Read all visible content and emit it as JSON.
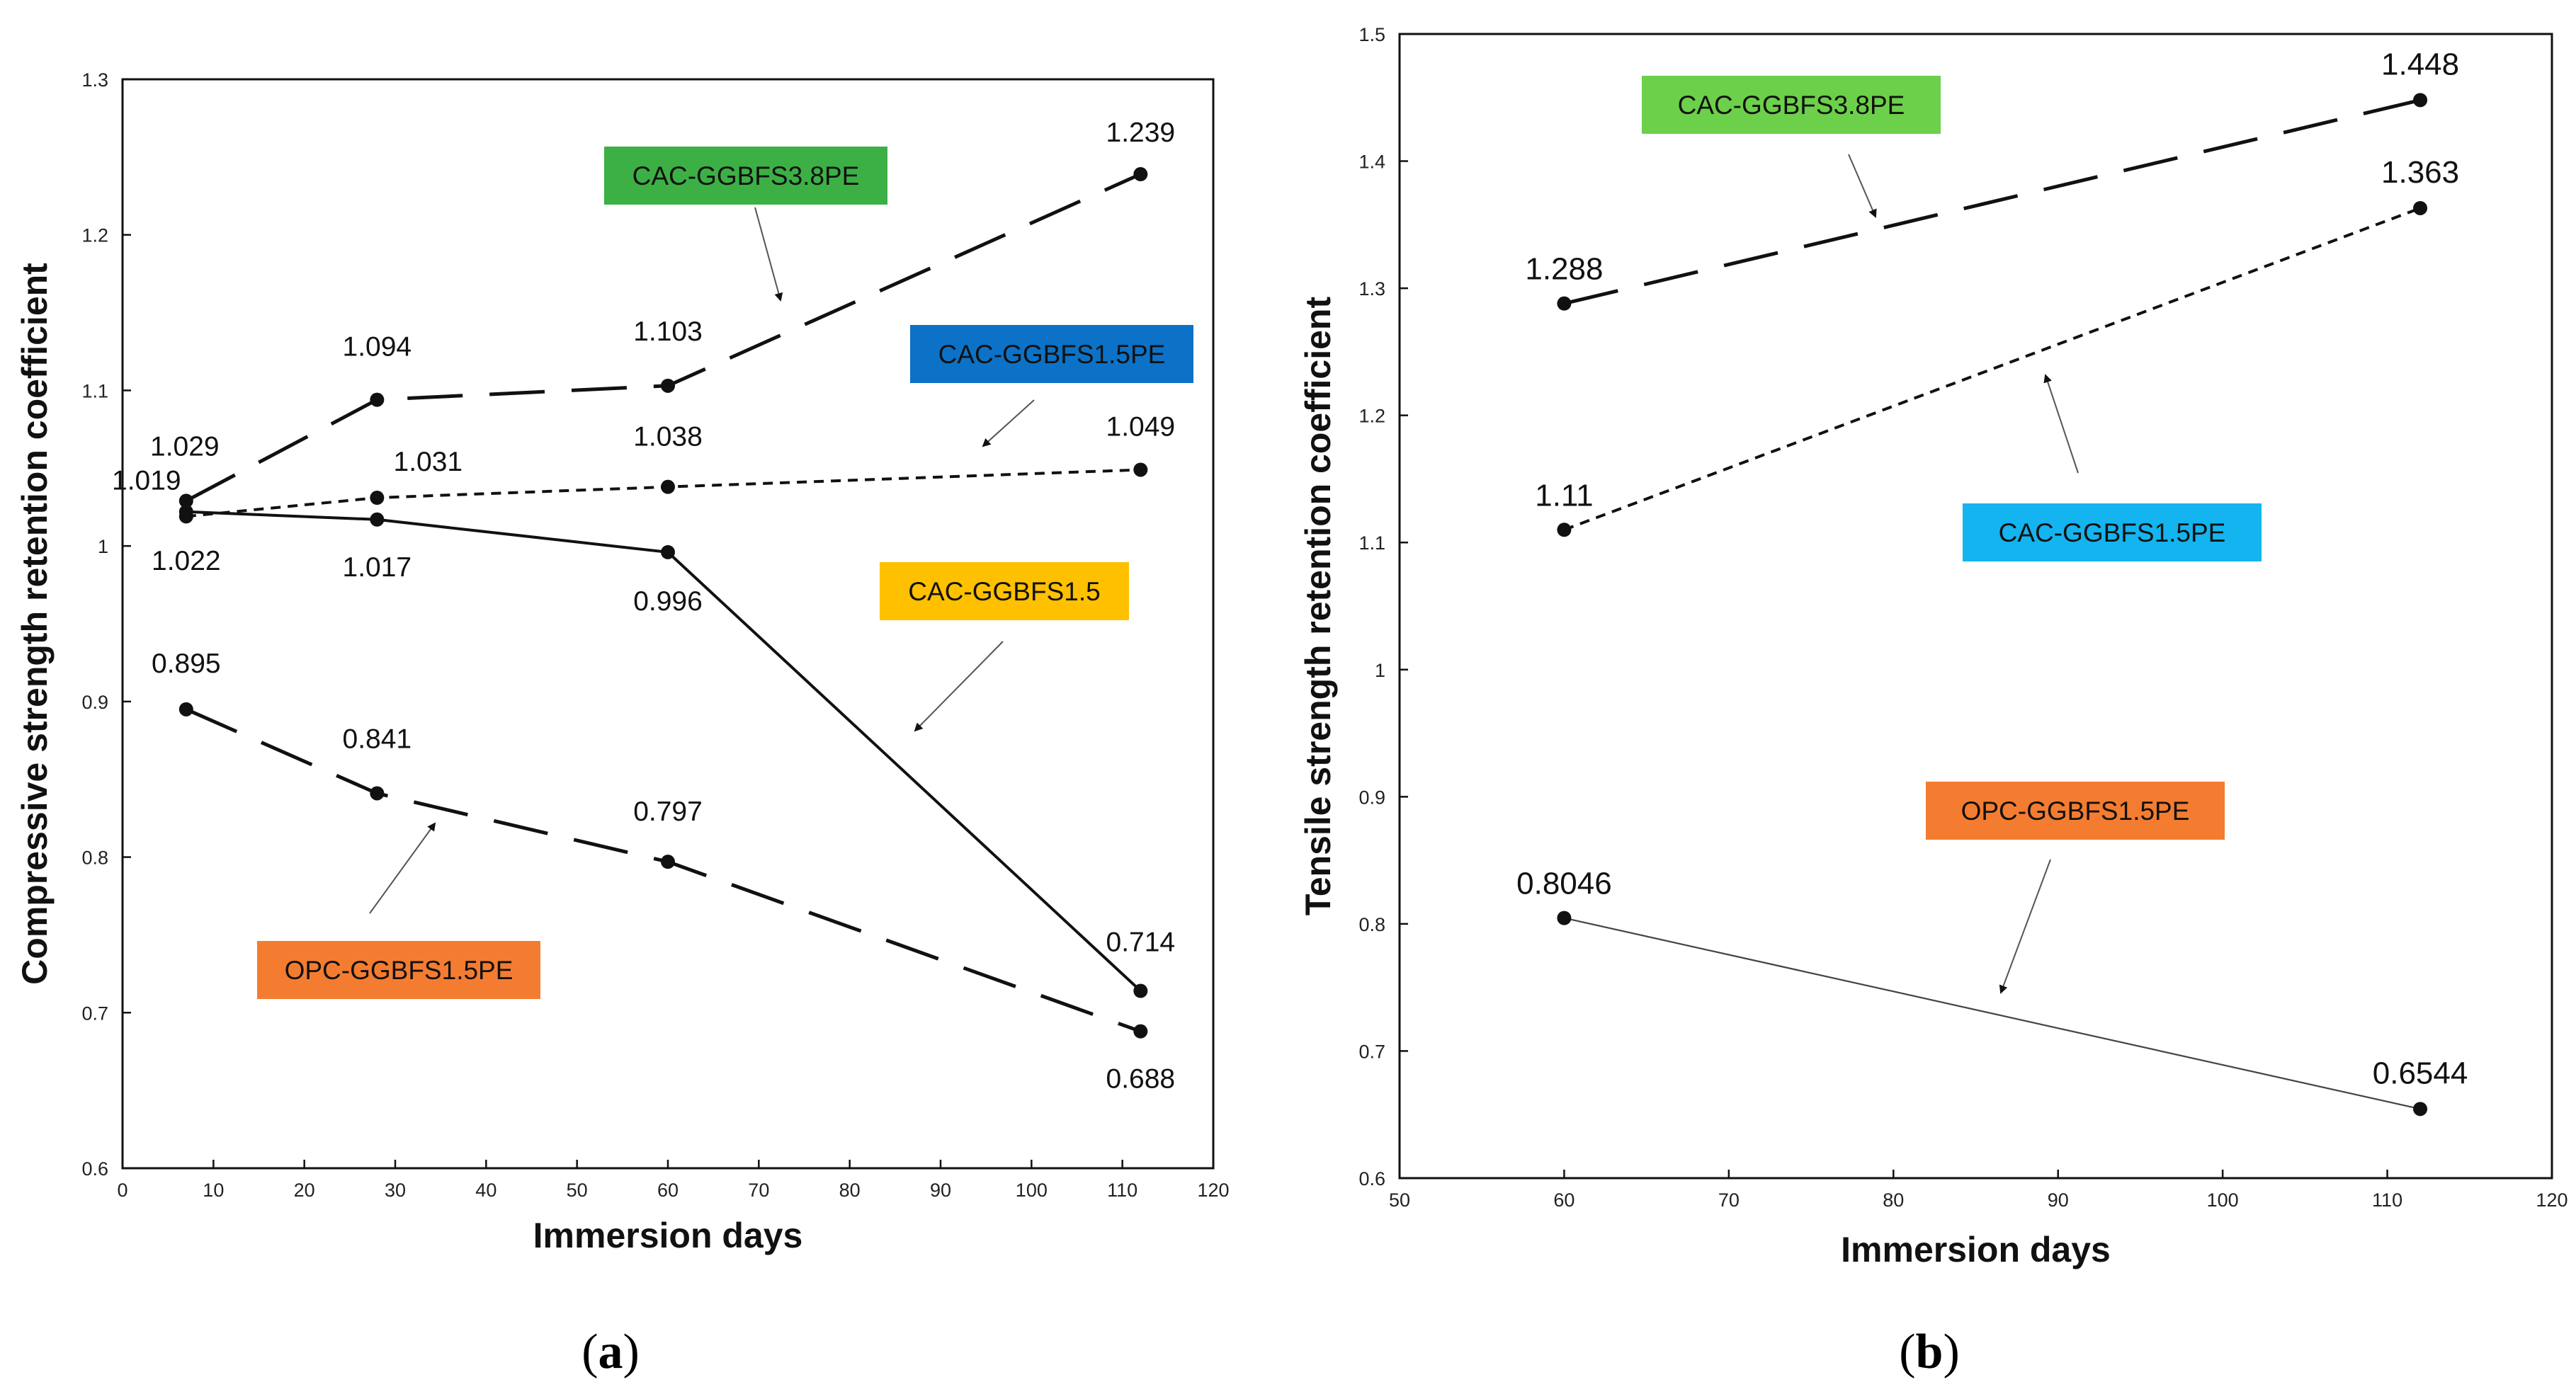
{
  "chart_data": [
    {
      "type": "line",
      "panel_label": "a",
      "xlabel": "Immersion days",
      "ylabel": "Compressive strength retention coefficient",
      "xlim": [
        0,
        120
      ],
      "ylim": [
        0.6,
        1.3
      ],
      "xticks": [
        "0",
        "10",
        "20",
        "30",
        "40",
        "50",
        "60",
        "70",
        "80",
        "90",
        "100",
        "110",
        "120"
      ],
      "yticks": [
        "0.6",
        "0.7",
        "0.8",
        "0.9",
        "1",
        "1.1",
        "1.2",
        "1.3"
      ],
      "series": [
        {
          "name": "CAC-GGBFS3.8PE",
          "badge_color": "#3cb044",
          "line_style": "long-dash",
          "x": [
            7,
            28,
            60,
            112
          ],
          "y": [
            1.029,
            1.094,
            1.103,
            1.239
          ],
          "labels": [
            "1.029",
            "1.094",
            "1.103",
            "1.239"
          ]
        },
        {
          "name": "CAC-GGBFS1.5PE",
          "badge_color": "#0b72c7",
          "line_style": "short-dash",
          "x": [
            7,
            28,
            60,
            112
          ],
          "y": [
            1.019,
            1.031,
            1.038,
            1.049
          ],
          "labels": [
            "1.019",
            "1.031",
            "1.038",
            "1.049"
          ]
        },
        {
          "name": "CAC-GGBFS1.5",
          "badge_color": "#ffc000",
          "line_style": "solid",
          "x": [
            7,
            28,
            60,
            112
          ],
          "y": [
            1.022,
            1.017,
            0.996,
            0.714
          ],
          "labels": [
            "1.022",
            "1.017",
            "0.996",
            "0.714"
          ]
        },
        {
          "name": "OPC-GGBFS1.5PE",
          "badge_color": "#f47c30",
          "line_style": "long-dash",
          "x": [
            7,
            28,
            60,
            112
          ],
          "y": [
            0.895,
            0.841,
            0.797,
            0.688
          ],
          "labels": [
            "0.895",
            "0.841",
            "0.797",
            "0.688"
          ]
        }
      ]
    },
    {
      "type": "line",
      "panel_label": "b",
      "xlabel": "Immersion days",
      "ylabel": "Tensile strength retention coefficient",
      "xlim": [
        50,
        120
      ],
      "ylim": [
        0.6,
        1.5
      ],
      "xticks": [
        "50",
        "60",
        "70",
        "80",
        "90",
        "100",
        "110",
        "120"
      ],
      "yticks": [
        "0.6",
        "0.7",
        "0.8",
        "0.9",
        "1",
        "1.1",
        "1.2",
        "1.3",
        "1.4",
        "1.5"
      ],
      "series": [
        {
          "name": "CAC-GGBFS3.8PE",
          "badge_color": "#6cd04a",
          "line_style": "long-dash",
          "x": [
            60,
            112
          ],
          "y": [
            1.288,
            1.448
          ],
          "labels": [
            "1.288",
            "1.448"
          ]
        },
        {
          "name": "CAC-GGBFS1.5PE",
          "badge_color": "#13b4ef",
          "line_style": "short-dash",
          "x": [
            60,
            112
          ],
          "y": [
            1.11,
            1.363
          ],
          "labels": [
            "1.11",
            "1.363"
          ]
        },
        {
          "name": "OPC-GGBFS1.5PE",
          "badge_color": "#f47c30",
          "line_style": "thin-solid",
          "x": [
            60,
            112
          ],
          "y": [
            0.8046,
            0.6544
          ],
          "labels": [
            "0.8046",
            "0.6544"
          ]
        }
      ]
    }
  ]
}
